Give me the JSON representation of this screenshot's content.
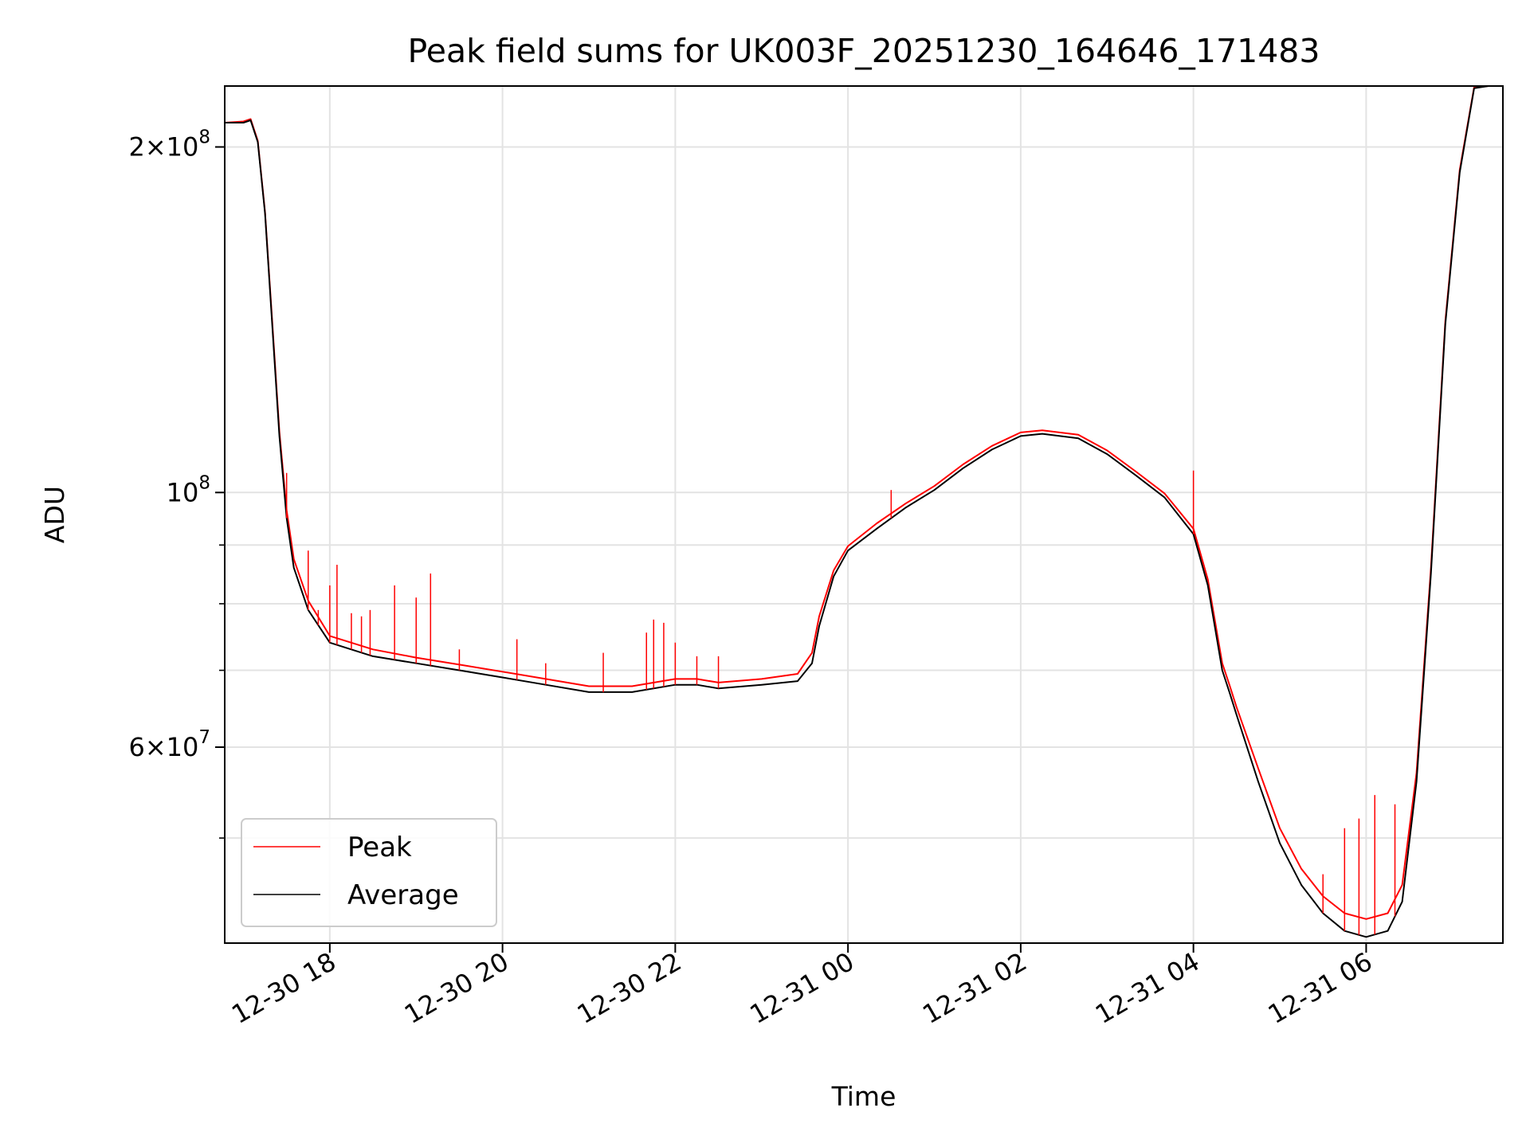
{
  "chart_data": {
    "type": "line",
    "title": "Peak field sums for UK003F_20251230_164646_171483",
    "xlabel": "Time",
    "ylabel": "ADU",
    "yscale": "log",
    "ylim": [
      40500000,
      226000000
    ],
    "xlim": [
      "2025-12-30 16:47",
      "2025-12-31 07:35"
    ],
    "x_ticks": [
      {
        "t": "2025-12-30 18:00",
        "label": "12-30 18"
      },
      {
        "t": "2025-12-30 20:00",
        "label": "12-30 20"
      },
      {
        "t": "2025-12-30 22:00",
        "label": "12-30 22"
      },
      {
        "t": "2025-12-31 00:00",
        "label": "12-31 00"
      },
      {
        "t": "2025-12-31 02:00",
        "label": "12-31 02"
      },
      {
        "t": "2025-12-31 04:00",
        "label": "12-31 04"
      },
      {
        "t": "2025-12-31 06:00",
        "label": "12-31 06"
      }
    ],
    "y_major_ticks": [
      {
        "v": 60000000,
        "base": "6×10",
        "exp": "7"
      },
      {
        "v": 100000000,
        "base": "10",
        "exp": "8"
      },
      {
        "v": 200000000,
        "base": "2×10",
        "exp": "8"
      }
    ],
    "y_minor_ticks": [
      50000000,
      70000000,
      80000000,
      90000000
    ],
    "grid": true,
    "legend_position": "lower-left",
    "series": [
      {
        "name": "Average",
        "color": "#000000",
        "x": [
          "2025-12-30 16:47",
          "2025-12-30 17:00",
          "2025-12-30 17:05",
          "2025-12-30 17:10",
          "2025-12-30 17:15",
          "2025-12-30 17:20",
          "2025-12-30 17:25",
          "2025-12-30 17:30",
          "2025-12-30 17:35",
          "2025-12-30 17:45",
          "2025-12-30 18:00",
          "2025-12-30 18:30",
          "2025-12-30 19:00",
          "2025-12-30 19:30",
          "2025-12-30 20:00",
          "2025-12-30 20:30",
          "2025-12-30 21:00",
          "2025-12-30 21:30",
          "2025-12-30 22:00",
          "2025-12-30 22:15",
          "2025-12-30 22:30",
          "2025-12-30 23:00",
          "2025-12-30 23:25",
          "2025-12-30 23:35",
          "2025-12-30 23:40",
          "2025-12-30 23:50",
          "2025-12-31 00:00",
          "2025-12-31 00:20",
          "2025-12-31 00:40",
          "2025-12-31 01:00",
          "2025-12-31 01:20",
          "2025-12-31 01:40",
          "2025-12-31 02:00",
          "2025-12-31 02:15",
          "2025-12-31 02:40",
          "2025-12-31 03:00",
          "2025-12-31 03:20",
          "2025-12-31 03:40",
          "2025-12-31 04:00",
          "2025-12-31 04:10",
          "2025-12-31 04:20",
          "2025-12-31 04:25",
          "2025-12-31 04:30",
          "2025-12-31 04:45",
          "2025-12-31 05:00",
          "2025-12-31 05:15",
          "2025-12-31 05:30",
          "2025-12-31 05:45",
          "2025-12-31 06:00",
          "2025-12-31 06:15",
          "2025-12-31 06:25",
          "2025-12-31 06:35",
          "2025-12-31 06:45",
          "2025-12-31 06:55",
          "2025-12-31 07:05",
          "2025-12-31 07:15",
          "2025-12-31 07:25",
          "2025-12-31 07:35"
        ],
        "y": [
          210000000,
          210000000,
          211000000,
          202000000,
          175000000,
          140000000,
          112000000,
          95000000,
          86000000,
          79000000,
          74000000,
          72000000,
          71000000,
          70000000,
          69000000,
          68000000,
          67000000,
          67000000,
          68000000,
          68000000,
          67500000,
          68000000,
          68500000,
          71000000,
          76500000,
          84500000,
          89000000,
          93000000,
          97000000,
          100500000,
          105000000,
          109000000,
          112000000,
          112500000,
          111500000,
          108000000,
          103500000,
          99000000,
          92000000,
          83000000,
          70000000,
          67000000,
          64000000,
          56000000,
          49500000,
          45500000,
          43000000,
          41500000,
          41000000,
          41500000,
          44000000,
          56000000,
          85000000,
          140000000,
          190000000,
          225000000,
          226000000,
          226000000
        ]
      },
      {
        "name": "Peak",
        "color": "#ff0000",
        "x": [
          "2025-12-30 16:47",
          "2025-12-30 17:00",
          "2025-12-30 17:05",
          "2025-12-30 17:10",
          "2025-12-30 17:15",
          "2025-12-30 17:20",
          "2025-12-30 17:25",
          "2025-12-30 17:30",
          "2025-12-30 17:35",
          "2025-12-30 17:45",
          "2025-12-30 18:00",
          "2025-12-30 18:30",
          "2025-12-30 19:00",
          "2025-12-30 19:30",
          "2025-12-30 20:00",
          "2025-12-30 20:30",
          "2025-12-30 21:00",
          "2025-12-30 21:30",
          "2025-12-30 22:00",
          "2025-12-30 22:15",
          "2025-12-30 22:30",
          "2025-12-30 23:00",
          "2025-12-30 23:25",
          "2025-12-30 23:35",
          "2025-12-30 23:40",
          "2025-12-30 23:50",
          "2025-12-31 00:00",
          "2025-12-31 00:20",
          "2025-12-31 00:40",
          "2025-12-31 01:00",
          "2025-12-31 01:20",
          "2025-12-31 01:40",
          "2025-12-31 02:00",
          "2025-12-31 02:15",
          "2025-12-31 02:40",
          "2025-12-31 03:00",
          "2025-12-31 03:20",
          "2025-12-31 03:40",
          "2025-12-31 04:00",
          "2025-12-31 04:10",
          "2025-12-31 04:20",
          "2025-12-31 04:25",
          "2025-12-31 04:30",
          "2025-12-31 04:45",
          "2025-12-31 05:00",
          "2025-12-31 05:15",
          "2025-12-31 05:30",
          "2025-12-31 05:45",
          "2025-12-31 06:00",
          "2025-12-31 06:15",
          "2025-12-31 06:25",
          "2025-12-31 06:35",
          "2025-12-31 06:45",
          "2025-12-31 06:55",
          "2025-12-31 07:05",
          "2025-12-31 07:15",
          "2025-12-31 07:25",
          "2025-12-31 07:35"
        ],
        "y": [
          210000000,
          210500000,
          211500000,
          202500000,
          175500000,
          141000000,
          113000000,
          96500000,
          87500000,
          80500000,
          75000000,
          73000000,
          71800000,
          70800000,
          69800000,
          68800000,
          67800000,
          67800000,
          68800000,
          68800000,
          68300000,
          68800000,
          69500000,
          72500000,
          78000000,
          85500000,
          89800000,
          94000000,
          97800000,
          101300000,
          105800000,
          109800000,
          112800000,
          113300000,
          112300000,
          108800000,
          104300000,
          99800000,
          93000000,
          84000000,
          71000000,
          68000000,
          65000000,
          57500000,
          51000000,
          47000000,
          44500000,
          43000000,
          42500000,
          43000000,
          45500000,
          57000000,
          86000000,
          141000000,
          191000000,
          225500000,
          226000000,
          226000000
        ]
      }
    ],
    "peak_spikes": [
      [
        "2025-12-30 17:30",
        104000000
      ],
      [
        "2025-12-30 17:45",
        89000000
      ],
      [
        "2025-12-30 17:52",
        79000000
      ],
      [
        "2025-12-30 18:00",
        83000000
      ],
      [
        "2025-12-30 18:05",
        86500000
      ],
      [
        "2025-12-30 18:15",
        78500000
      ],
      [
        "2025-12-30 18:22",
        78000000
      ],
      [
        "2025-12-30 18:28",
        79000000
      ],
      [
        "2025-12-30 18:45",
        83000000
      ],
      [
        "2025-12-30 19:00",
        81000000
      ],
      [
        "2025-12-30 19:10",
        85000000
      ],
      [
        "2025-12-30 19:30",
        73000000
      ],
      [
        "2025-12-30 20:10",
        74500000
      ],
      [
        "2025-12-30 20:30",
        71000000
      ],
      [
        "2025-12-30 21:10",
        72500000
      ],
      [
        "2025-12-30 21:40",
        75500000
      ],
      [
        "2025-12-30 21:45",
        77500000
      ],
      [
        "2025-12-30 21:52",
        77000000
      ],
      [
        "2025-12-30 22:00",
        74000000
      ],
      [
        "2025-12-30 22:15",
        72000000
      ],
      [
        "2025-12-30 22:30",
        72000000
      ],
      [
        "2025-12-31 00:30",
        100500000
      ],
      [
        "2025-12-31 04:00",
        104500000
      ],
      [
        "2025-12-31 05:30",
        46500000
      ],
      [
        "2025-12-31 05:45",
        51000000
      ],
      [
        "2025-12-31 05:55",
        52000000
      ],
      [
        "2025-12-31 06:06",
        54500000
      ],
      [
        "2025-12-31 06:20",
        53500000
      ]
    ],
    "legend": [
      {
        "name": "Peak",
        "color": "#ff0000"
      },
      {
        "name": "Average",
        "color": "#000000"
      }
    ]
  }
}
